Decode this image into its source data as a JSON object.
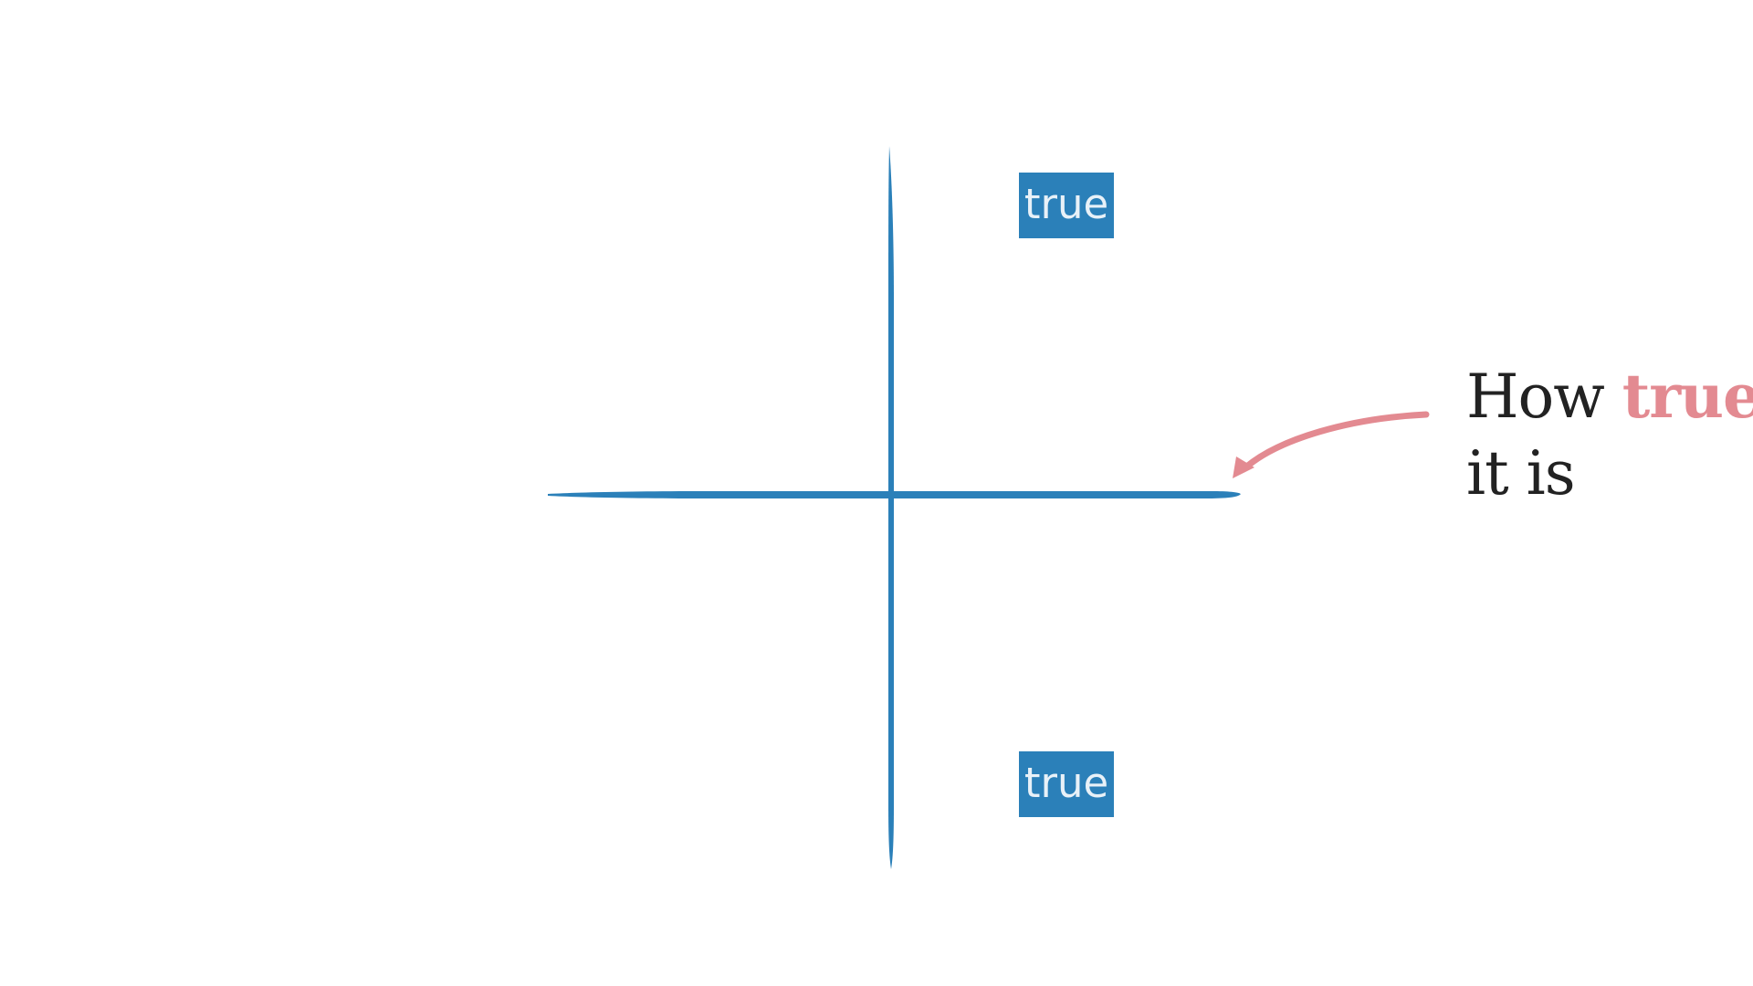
{
  "diagram": {
    "labels": {
      "top_tag": "true",
      "bottom_tag": "true"
    },
    "annotation": {
      "line1_plain": "How",
      "line1_emphasis": "true",
      "line2": "it is"
    },
    "icons": {
      "arrow": "curved-arrow-icon"
    }
  },
  "colors": {
    "axis": "#2b80b9",
    "tag_background": "#2b80b9",
    "tag_text": "#e8f1f8",
    "annotation_text": "#222222",
    "accent": "#e38a91"
  }
}
